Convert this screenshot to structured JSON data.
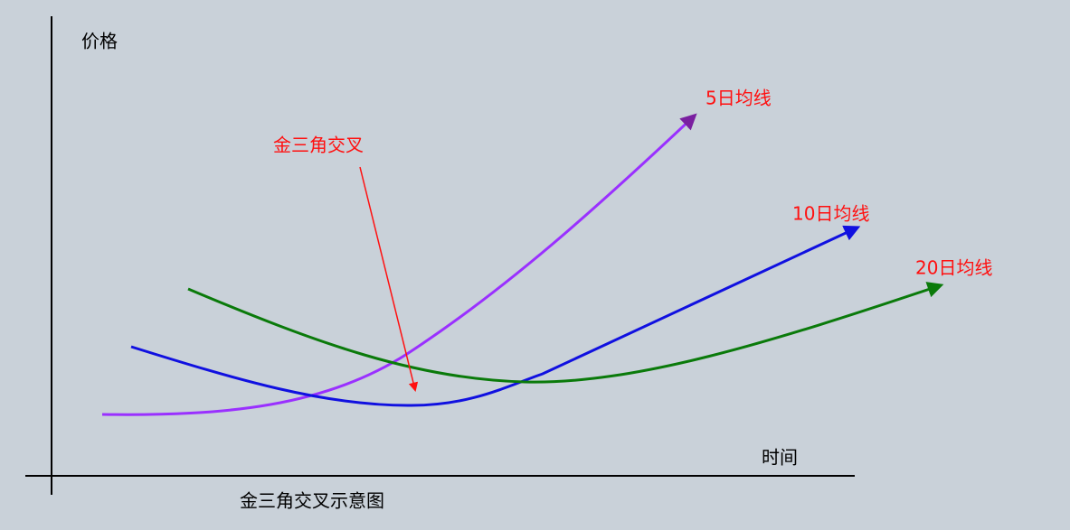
{
  "axes": {
    "y_label": "价格",
    "x_label": "时间"
  },
  "lines": [
    {
      "label": "5日均线"
    },
    {
      "label": "10日均线"
    },
    {
      "label": "20日均线"
    }
  ],
  "annotation": "金三角交叉",
  "caption": "金三角交叉示意图"
}
